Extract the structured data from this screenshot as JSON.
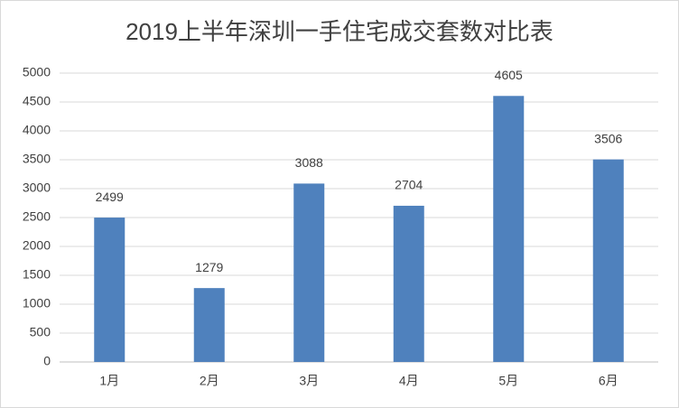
{
  "chart_data": {
    "type": "bar",
    "title": "2019上半年深圳一手住宅成交套数对比表",
    "categories": [
      "1月",
      "2月",
      "3月",
      "4月",
      "5月",
      "6月"
    ],
    "values": [
      2499,
      1279,
      3088,
      2704,
      4605,
      3506
    ],
    "color": "#4f81bd",
    "ylim": [
      0,
      5000
    ],
    "yticks": [
      0,
      500,
      1000,
      1500,
      2000,
      2500,
      3000,
      3500,
      4000,
      4500,
      5000
    ],
    "grid": true
  }
}
